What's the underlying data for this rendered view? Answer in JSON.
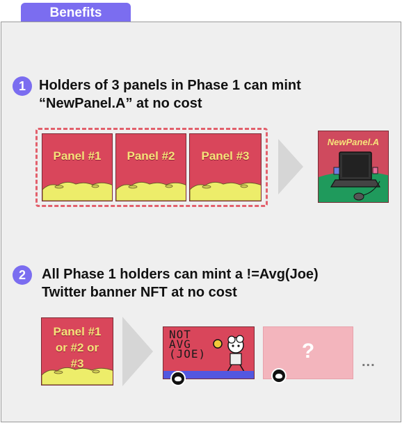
{
  "header": {
    "tab_label": "Benefits"
  },
  "colors": {
    "accent": "#7b6df0",
    "panel_red": "#d9465b",
    "moon_yellow": "#eded6a",
    "dashed": "#e2606c",
    "banner_blue": "#5357e0",
    "placeholder_pink": "#f3b5bd"
  },
  "step1": {
    "number": "1",
    "line1": "Holders of 3 panels in Phase 1 can mint",
    "line2": "“NewPanel.A”  at no cost"
  },
  "panels": [
    {
      "label": "Panel #1"
    },
    {
      "label": "Panel #2"
    },
    {
      "label": "Panel #3"
    }
  ],
  "new_panel": {
    "label": "NewPanel.A"
  },
  "step2": {
    "number": "2",
    "line1": "All Phase 1 holders can mint a !=Avg(Joe)",
    "line2": "Twitter banner NFT at no cost"
  },
  "any_panel": {
    "line1": "Panel #1",
    "line2": "or #2 or",
    "line3": "#3"
  },
  "banner": {
    "l1": "NOT",
    "l2": "AVG",
    "l3": "(JOE)"
  },
  "placeholder": {
    "label": "?"
  },
  "more": {
    "label": "..."
  }
}
